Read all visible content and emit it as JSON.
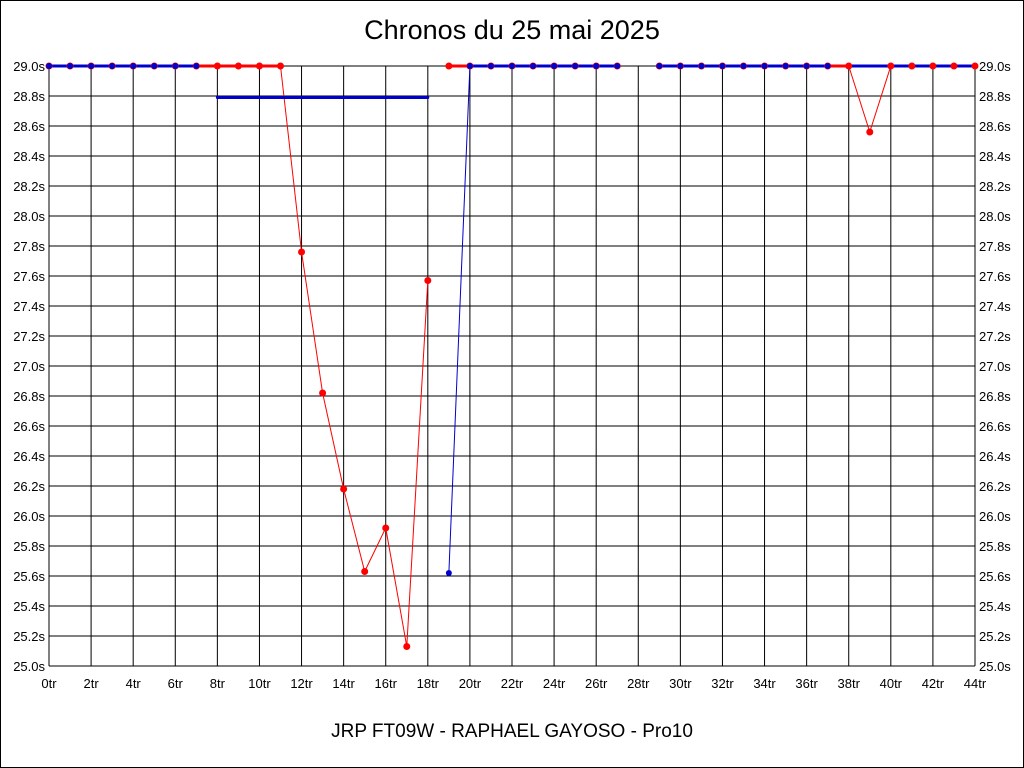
{
  "chart_data": {
    "type": "line",
    "title": "Chronos du 25 mai 2025",
    "subtitle": "JRP FT09W - RAPHAEL GAYOSO - Pro10",
    "xlabel": "",
    "ylabel": "",
    "xlim": [
      0,
      44
    ],
    "ylim": [
      25.0,
      29.0
    ],
    "grid": true,
    "x_ticks": [
      "0tr",
      "2tr",
      "4tr",
      "6tr",
      "8tr",
      "10tr",
      "12tr",
      "14tr",
      "16tr",
      "18tr",
      "20tr",
      "22tr",
      "24tr",
      "26tr",
      "28tr",
      "30tr",
      "32tr",
      "34tr",
      "36tr",
      "38tr",
      "40tr",
      "42tr",
      "44tr"
    ],
    "y_ticks": [
      "25.0s",
      "25.2s",
      "25.4s",
      "25.6s",
      "25.8s",
      "26.0s",
      "26.2s",
      "26.4s",
      "26.6s",
      "26.8s",
      "27.0s",
      "27.2s",
      "27.4s",
      "27.6s",
      "27.8s",
      "28.0s",
      "28.2s",
      "28.4s",
      "28.6s",
      "28.8s",
      "29.0s"
    ],
    "y_ticks_right": true,
    "series": [
      {
        "color": "#ff0000",
        "points": [
          [
            0,
            29.0
          ],
          [
            1,
            29.0
          ],
          [
            2,
            29.0
          ],
          [
            3,
            29.0
          ],
          [
            4,
            29.0
          ],
          [
            5,
            29.0
          ],
          [
            6,
            29.0
          ],
          [
            7,
            29.0
          ],
          [
            8,
            29.0
          ],
          [
            9,
            29.0
          ],
          [
            10,
            29.0
          ],
          [
            11,
            29.0
          ],
          [
            12,
            27.76
          ],
          [
            13,
            26.82
          ],
          [
            14,
            26.18
          ],
          [
            15,
            25.63
          ],
          [
            16,
            25.92
          ],
          [
            17,
            25.13
          ],
          [
            18,
            27.57
          ],
          null,
          [
            19,
            29.0
          ],
          [
            20,
            29.0
          ],
          [
            21,
            29.0
          ],
          [
            22,
            29.0
          ],
          [
            23,
            29.0
          ],
          [
            24,
            29.0
          ],
          [
            25,
            29.0
          ],
          [
            26,
            29.0
          ],
          [
            27,
            29.0
          ],
          null,
          [
            29,
            29.0
          ],
          [
            30,
            29.0
          ],
          [
            31,
            29.0
          ],
          [
            32,
            29.0
          ],
          [
            33,
            29.0
          ],
          [
            34,
            29.0
          ],
          [
            35,
            29.0
          ],
          [
            36,
            29.0
          ],
          [
            37,
            29.0
          ],
          [
            38,
            29.0
          ],
          [
            39,
            28.56
          ],
          [
            40,
            29.0
          ],
          [
            41,
            29.0
          ],
          [
            42,
            29.0
          ],
          [
            43,
            29.0
          ],
          [
            44,
            29.0
          ]
        ]
      },
      {
        "color": "#0000cc",
        "points": [
          [
            0,
            29.0
          ],
          [
            1,
            29.0
          ],
          [
            2,
            29.0
          ],
          [
            3,
            29.0
          ],
          [
            4,
            29.0
          ],
          [
            5,
            29.0
          ],
          [
            6,
            29.0
          ],
          [
            7,
            29.0
          ],
          null,
          [
            8,
            28.79
          ],
          [
            18,
            28.79
          ],
          null,
          [
            19,
            25.62
          ],
          [
            20,
            29.0
          ],
          [
            21,
            29.0
          ],
          [
            22,
            29.0
          ],
          [
            23,
            29.0
          ],
          [
            24,
            29.0
          ],
          [
            25,
            29.0
          ],
          [
            26,
            29.0
          ],
          [
            27,
            29.0
          ],
          null,
          [
            29,
            29.0
          ],
          [
            30,
            29.0
          ],
          [
            31,
            29.0
          ],
          [
            32,
            29.0
          ],
          [
            33,
            29.0
          ],
          [
            34,
            29.0
          ],
          [
            35,
            29.0
          ],
          [
            36,
            29.0
          ],
          [
            37,
            29.0
          ],
          null,
          [
            38,
            29.0
          ],
          [
            44,
            29.0
          ]
        ],
        "markers": [
          [
            0,
            29.0
          ],
          [
            1,
            29.0
          ],
          [
            2,
            29.0
          ],
          [
            3,
            29.0
          ],
          [
            4,
            29.0
          ],
          [
            5,
            29.0
          ],
          [
            6,
            29.0
          ],
          [
            7,
            29.0
          ],
          [
            19,
            25.62
          ],
          [
            20,
            29.0
          ],
          [
            21,
            29.0
          ],
          [
            22,
            29.0
          ],
          [
            23,
            29.0
          ],
          [
            24,
            29.0
          ],
          [
            25,
            29.0
          ],
          [
            26,
            29.0
          ],
          [
            27,
            29.0
          ],
          [
            29,
            29.0
          ],
          [
            30,
            29.0
          ],
          [
            31,
            29.0
          ],
          [
            32,
            29.0
          ],
          [
            33,
            29.0
          ],
          [
            34,
            29.0
          ],
          [
            35,
            29.0
          ],
          [
            36,
            29.0
          ],
          [
            37,
            29.0
          ]
        ]
      }
    ]
  }
}
